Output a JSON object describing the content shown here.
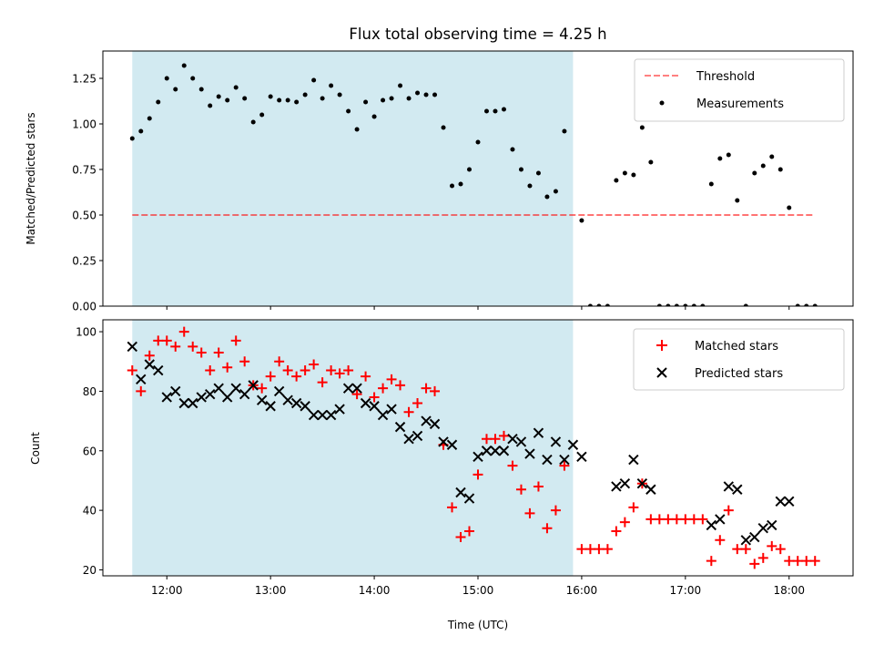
{
  "colors": {
    "shade": "#add8e6",
    "threshold": "#ff0000",
    "measurement": "#000000",
    "matched": "#ff0000",
    "predicted": "#000000"
  },
  "chart_data": [
    {
      "type": "scatter",
      "title": "Flux total observing time = 4.25 h",
      "xlabel": "",
      "ylabel": "Matched/Predicted stars",
      "xlim": [
        "11:23",
        "18:37"
      ],
      "ylim": [
        0,
        1.4
      ],
      "yticks": [
        "0.00",
        "0.25",
        "0.50",
        "0.75",
        "1.00",
        "1.25"
      ],
      "shaded_span": [
        "11:40",
        "15:55"
      ],
      "legend": {
        "location": "upper right",
        "entries": [
          "Threshold",
          "Measurements"
        ]
      },
      "threshold": {
        "name": "Threshold",
        "value": 0.5,
        "x_range": [
          "11:40",
          "18:15"
        ],
        "style": "dashed"
      },
      "series": [
        {
          "name": "Measurements",
          "marker": "dot",
          "x": [
            "11:40",
            "11:45",
            "11:50",
            "11:55",
            "12:00",
            "12:05",
            "12:10",
            "12:15",
            "12:20",
            "12:25",
            "12:30",
            "12:35",
            "12:40",
            "12:45",
            "12:50",
            "12:55",
            "13:00",
            "13:05",
            "13:10",
            "13:15",
            "13:20",
            "13:25",
            "13:30",
            "13:35",
            "13:40",
            "13:45",
            "13:50",
            "13:55",
            "14:00",
            "14:05",
            "14:10",
            "14:15",
            "14:20",
            "14:25",
            "14:30",
            "14:35",
            "14:40",
            "14:45",
            "14:50",
            "14:55",
            "15:00",
            "15:05",
            "15:10",
            "15:15",
            "15:20",
            "15:25",
            "15:30",
            "15:35",
            "15:40",
            "15:45",
            "15:50",
            "16:00",
            "16:05",
            "16:10",
            "16:15",
            "16:20",
            "16:25",
            "16:30",
            "16:35",
            "16:40",
            "16:45",
            "16:50",
            "16:55",
            "17:00",
            "17:05",
            "17:10",
            "17:15",
            "17:20",
            "17:25",
            "17:30",
            "17:35",
            "17:40",
            "17:45",
            "17:50",
            "17:55",
            "18:00",
            "18:05",
            "18:10",
            "18:15"
          ],
          "y": [
            0.92,
            0.96,
            1.03,
            1.12,
            1.25,
            1.19,
            1.32,
            1.25,
            1.19,
            1.1,
            1.15,
            1.13,
            1.2,
            1.14,
            1.01,
            1.05,
            1.15,
            1.13,
            1.13,
            1.12,
            1.16,
            1.24,
            1.14,
            1.21,
            1.16,
            1.07,
            0.97,
            1.12,
            1.04,
            1.13,
            1.14,
            1.21,
            1.14,
            1.17,
            1.16,
            1.16,
            0.98,
            0.66,
            0.67,
            0.75,
            0.9,
            1.07,
            1.07,
            1.08,
            0.86,
            0.75,
            0.66,
            0.73,
            0.6,
            0.63,
            0.96,
            0.47,
            0.0,
            0.0,
            0.0,
            0.69,
            0.73,
            0.72,
            0.98,
            0.79,
            0.0,
            0.0,
            0.0,
            0.0,
            0.0,
            0.0,
            0.67,
            0.81,
            0.83,
            0.58,
            0.0,
            0.73,
            0.77,
            0.82,
            0.75,
            0.54,
            0.0,
            0.0,
            0.0
          ]
        }
      ]
    },
    {
      "type": "scatter",
      "title": "",
      "xlabel": "Time (UTC)",
      "ylabel": "Count",
      "xlim": [
        "11:23",
        "18:37"
      ],
      "ylim": [
        18,
        104
      ],
      "yticks": [
        "20",
        "40",
        "60",
        "80",
        "100"
      ],
      "xticks": [
        "12:00",
        "13:00",
        "14:00",
        "15:00",
        "16:00",
        "17:00",
        "18:00"
      ],
      "shaded_span": [
        "11:40",
        "15:55"
      ],
      "legend": {
        "location": "upper right",
        "entries": [
          "Matched stars",
          "Predicted stars"
        ]
      },
      "series": [
        {
          "name": "Matched stars",
          "marker": "plus",
          "x": [
            "11:40",
            "11:45",
            "11:50",
            "11:55",
            "12:00",
            "12:05",
            "12:10",
            "12:15",
            "12:20",
            "12:25",
            "12:30",
            "12:35",
            "12:40",
            "12:45",
            "12:50",
            "12:55",
            "13:00",
            "13:05",
            "13:10",
            "13:15",
            "13:20",
            "13:25",
            "13:30",
            "13:35",
            "13:40",
            "13:45",
            "13:50",
            "13:55",
            "14:00",
            "14:05",
            "14:10",
            "14:15",
            "14:20",
            "14:25",
            "14:30",
            "14:35",
            "14:40",
            "14:45",
            "14:50",
            "14:55",
            "15:00",
            "15:05",
            "15:10",
            "15:15",
            "15:20",
            "15:25",
            "15:30",
            "15:35",
            "15:40",
            "15:45",
            "15:50",
            "16:00",
            "16:05",
            "16:10",
            "16:15",
            "16:20",
            "16:25",
            "16:30",
            "16:35",
            "16:40",
            "16:45",
            "16:50",
            "16:55",
            "17:00",
            "17:05",
            "17:10",
            "17:15",
            "17:20",
            "17:25",
            "17:30",
            "17:35",
            "17:40",
            "17:45",
            "17:50",
            "17:55",
            "18:00",
            "18:05",
            "18:10",
            "18:15"
          ],
          "y": [
            87,
            80,
            92,
            97,
            97,
            95,
            100,
            95,
            93,
            87,
            93,
            88,
            97,
            90,
            82,
            81,
            85,
            90,
            87,
            85,
            87,
            89,
            83,
            87,
            86,
            87,
            79,
            85,
            78,
            81,
            84,
            82,
            73,
            76,
            81,
            80,
            62,
            41,
            31,
            33,
            52,
            64,
            64,
            65,
            55,
            47,
            39,
            48,
            34,
            40,
            55,
            27,
            27,
            27,
            27,
            33,
            36,
            41,
            49,
            37,
            37,
            37,
            37,
            37,
            37,
            37,
            23,
            30,
            40,
            27,
            27,
            22,
            24,
            28,
            27,
            23,
            23,
            23,
            23
          ]
        },
        {
          "name": "Predicted stars",
          "marker": "x",
          "x": [
            "11:40",
            "11:45",
            "11:50",
            "11:55",
            "12:00",
            "12:05",
            "12:10",
            "12:15",
            "12:20",
            "12:25",
            "12:30",
            "12:35",
            "12:40",
            "12:45",
            "12:50",
            "12:55",
            "13:00",
            "13:05",
            "13:10",
            "13:15",
            "13:20",
            "13:25",
            "13:30",
            "13:35",
            "13:40",
            "13:45",
            "13:50",
            "13:55",
            "14:00",
            "14:05",
            "14:10",
            "14:15",
            "14:20",
            "14:25",
            "14:30",
            "14:35",
            "14:40",
            "14:45",
            "14:50",
            "14:55",
            "15:00",
            "15:05",
            "15:10",
            "15:15",
            "15:20",
            "15:25",
            "15:30",
            "15:35",
            "15:40",
            "15:45",
            "15:50",
            "15:55",
            "16:00",
            "16:20",
            "16:25",
            "16:30",
            "16:35",
            "16:40",
            "17:15",
            "17:20",
            "17:25",
            "17:30",
            "17:35",
            "17:40",
            "17:45",
            "17:50",
            "17:55",
            "18:00"
          ],
          "y": [
            95,
            84,
            89,
            87,
            78,
            80,
            76,
            76,
            78,
            79,
            81,
            78,
            81,
            79,
            82,
            77,
            75,
            80,
            77,
            76,
            75,
            72,
            72,
            72,
            74,
            81,
            81,
            76,
            75,
            72,
            74,
            68,
            64,
            65,
            70,
            69,
            63,
            62,
            46,
            44,
            58,
            60,
            60,
            60,
            64,
            63,
            59,
            66,
            57,
            63,
            57,
            62,
            58,
            48,
            49,
            57,
            49,
            47,
            35,
            37,
            48,
            47,
            30,
            31,
            34,
            35,
            43,
            43
          ]
        }
      ]
    }
  ]
}
